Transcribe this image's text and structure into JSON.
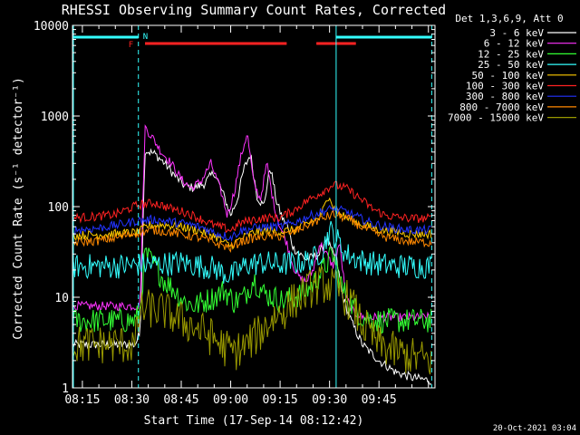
{
  "chart_data": {
    "type": "line",
    "title": "RHESSI Observing Summary Count Rates, Corrected",
    "xlabel": "Start Time (17-Sep-14 08:12:42)",
    "ylabel": "Corrected Count Rate (s⁻¹ detector⁻¹)",
    "yscale": "log",
    "ylim": [
      1,
      10000
    ],
    "xlim_minutes": [
      -3,
      107
    ],
    "x_ticks": [
      "08:15",
      "08:30",
      "08:45",
      "09:00",
      "09:15",
      "09:30",
      "09:45"
    ],
    "y_ticks": [
      "1",
      "10",
      "100",
      "1000",
      "10000"
    ],
    "legend_title": "Det 1,3,6,9, Att 0",
    "legend_position": "right",
    "footer": "20-Oct-2021 03:04",
    "flag_labels": {
      "N": "N",
      "F": "F"
    },
    "flag_bars": {
      "night": [
        [
          -3,
          17
        ],
        [
          77,
          106
        ]
      ],
      "flare": [
        [
          19,
          62
        ],
        [
          71,
          83
        ]
      ]
    },
    "night_boundaries": [
      17,
      77,
      106
    ],
    "series": [
      {
        "name": "3 - 6 keV",
        "color": "#ffffff",
        "x": [
          -3,
          16,
          17.5,
          19,
          22,
          25,
          28,
          31,
          34,
          37,
          40,
          43,
          45,
          47,
          49,
          51,
          53,
          55,
          57,
          59,
          61,
          62,
          64,
          66,
          68,
          70,
          72,
          74,
          76,
          77,
          79,
          82,
          85,
          90,
          95,
          100,
          106
        ],
        "y": [
          3,
          3,
          4,
          420,
          380,
          300,
          220,
          170,
          160,
          180,
          240,
          130,
          80,
          120,
          260,
          380,
          130,
          100,
          280,
          110,
          70,
          65,
          35,
          30,
          26,
          28,
          30,
          45,
          30,
          28,
          10,
          5,
          3,
          2,
          1.5,
          1.3,
          1.2
        ]
      },
      {
        "name": "6 - 12 keV",
        "color": "#ff33ff",
        "x": [
          -3,
          16,
          17.5,
          19,
          21,
          24,
          27,
          30,
          33,
          36,
          39,
          42,
          44,
          46,
          48,
          50,
          52,
          54,
          56,
          58,
          60,
          62,
          64,
          66,
          68,
          70,
          72,
          74,
          76,
          78,
          80,
          82,
          85,
          90,
          95,
          100,
          106
        ],
        "y": [
          8,
          8,
          8,
          750,
          600,
          400,
          300,
          200,
          160,
          190,
          300,
          150,
          80,
          140,
          340,
          650,
          180,
          120,
          300,
          110,
          60,
          40,
          22,
          16,
          15,
          20,
          40,
          30,
          22,
          40,
          10,
          7,
          6,
          6,
          6,
          6,
          6
        ]
      },
      {
        "name": "12 - 25 keV",
        "color": "#33ff33",
        "x": [
          -3,
          16,
          17.5,
          19,
          22,
          25,
          28,
          31,
          34,
          37,
          40,
          43,
          46,
          49,
          52,
          55,
          58,
          61,
          64,
          67,
          70,
          73,
          76,
          79,
          82,
          85,
          90,
          95,
          100,
          106
        ],
        "y": [
          5.5,
          5.5,
          7,
          30,
          22,
          15,
          12,
          9,
          8,
          9,
          10,
          12,
          9,
          10,
          16,
          11,
          10,
          9,
          10,
          11,
          14,
          20,
          30,
          12,
          8,
          6,
          5.5,
          5.5,
          5.5,
          5.5
        ]
      },
      {
        "name": "25 - 50 keV",
        "color": "#33ffff",
        "x": [
          -3,
          10,
          20,
          30,
          40,
          45,
          50,
          55,
          60,
          65,
          70,
          73,
          75,
          77,
          80,
          85,
          90,
          95,
          100,
          106
        ],
        "y": [
          22,
          22,
          23,
          24,
          21,
          17,
          23,
          24,
          23,
          24,
          26,
          34,
          55,
          45,
          30,
          25,
          23,
          22,
          22,
          22
        ]
      },
      {
        "name": "50 - 100 keV",
        "color": "#ffcc00",
        "x": [
          -3,
          10,
          17,
          20,
          25,
          30,
          35,
          40,
          43,
          45,
          48,
          52,
          56,
          60,
          64,
          68,
          72,
          74,
          75,
          76,
          78,
          80,
          84,
          88,
          92,
          96,
          100,
          106
        ],
        "y": [
          48,
          50,
          52,
          62,
          63,
          60,
          55,
          48,
          40,
          37,
          44,
          52,
          54,
          53,
          55,
          64,
          75,
          110,
          140,
          100,
          85,
          75,
          66,
          58,
          54,
          52,
          50,
          50
        ]
      },
      {
        "name": "100 - 300 keV",
        "color": "#ff2222",
        "x": [
          -3,
          5,
          10,
          17,
          22,
          27,
          32,
          37,
          40,
          43,
          45,
          48,
          52,
          56,
          60,
          64,
          68,
          72,
          76,
          80,
          84,
          88,
          92,
          96,
          100,
          106
        ],
        "y": [
          75,
          78,
          82,
          105,
          110,
          95,
          85,
          70,
          62,
          58,
          55,
          66,
          72,
          75,
          76,
          90,
          115,
          140,
          175,
          160,
          125,
          95,
          80,
          76,
          74,
          74
        ]
      },
      {
        "name": "300 - 800 keV",
        "color": "#2233ff",
        "x": [
          -3,
          5,
          10,
          17,
          22,
          27,
          32,
          37,
          40,
          43,
          45,
          48,
          52,
          56,
          60,
          64,
          68,
          72,
          76,
          80,
          84,
          88,
          92,
          96,
          100,
          106
        ],
        "y": [
          55,
          58,
          62,
          70,
          72,
          68,
          64,
          58,
          52,
          48,
          46,
          54,
          58,
          60,
          60,
          66,
          76,
          86,
          95,
          88,
          75,
          65,
          60,
          57,
          55,
          55
        ]
      },
      {
        "name": "800 - 7000 keV",
        "color": "#ff8800",
        "x": [
          -3,
          5,
          10,
          17,
          22,
          27,
          32,
          37,
          40,
          43,
          45,
          48,
          52,
          56,
          60,
          64,
          68,
          72,
          76,
          80,
          84,
          88,
          92,
          96,
          100,
          106
        ],
        "y": [
          40,
          42,
          45,
          52,
          55,
          52,
          48,
          44,
          40,
          37,
          35,
          41,
          45,
          47,
          47,
          52,
          62,
          72,
          82,
          75,
          62,
          52,
          46,
          43,
          41,
          40
        ]
      },
      {
        "name": "7000 - 15000 keV",
        "color": "#999900",
        "x": [
          -3,
          10,
          16,
          17.5,
          20,
          25,
          30,
          35,
          40,
          43,
          46,
          49,
          52,
          55,
          58,
          61,
          64,
          67,
          70,
          73,
          76,
          79,
          82,
          85,
          90,
          95,
          100,
          106
        ],
        "y": [
          3,
          3,
          3,
          7,
          7.5,
          7,
          5.5,
          4.5,
          3.5,
          2.8,
          2.5,
          2.8,
          3.5,
          4.5,
          6,
          7,
          9,
          11,
          13,
          14,
          13,
          11,
          8,
          5,
          3,
          2.5,
          2.2,
          2
        ]
      }
    ]
  }
}
